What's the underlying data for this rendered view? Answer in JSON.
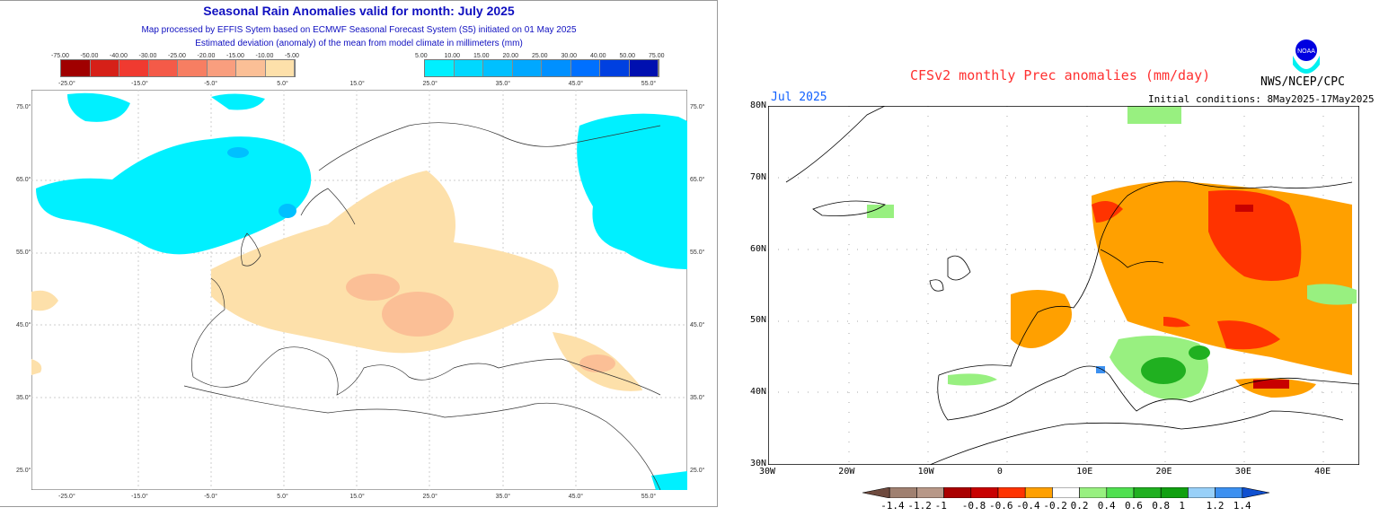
{
  "left": {
    "title": "Seasonal Rain Anomalies valid for month: July 2025",
    "subtitle1": "Map processed by EFFIS Sytem based on ECMWF Seasonal Forecast System (S5) initiated on 01 May 2025",
    "subtitle2": "Estimated deviation (anomaly) of the mean from model climate in millimeters (mm)",
    "legend_dry": {
      "labels": [
        "-75.00",
        "-50.00",
        "-40.00",
        "-30.00",
        "-25.00",
        "-20.00",
        "-15.00",
        "-10.00",
        "-5.00"
      ],
      "colors": [
        "#a00000",
        "#d62018",
        "#f03a30",
        "#f45a48",
        "#f77e62",
        "#f99e7e",
        "#fbbf96",
        "#fde0aa"
      ]
    },
    "legend_wet": {
      "labels": [
        "5.00",
        "10.00",
        "15.00",
        "20.00",
        "25.00",
        "30.00",
        "40.00",
        "50.00",
        "75.00"
      ],
      "colors": [
        "#00f0ff",
        "#00d8ff",
        "#00c0ff",
        "#00a8ff",
        "#0090ff",
        "#0070ff",
        "#0040e0",
        "#0010b0"
      ]
    },
    "lon_labels": [
      "-25.0°",
      "-15.0°",
      "-5.0°",
      "5.0°",
      "15.0°",
      "25.0°",
      "35.0°",
      "45.0°",
      "55.0°"
    ],
    "lat_labels": [
      "75.0°",
      "65.0°",
      "55.0°",
      "45.0°",
      "35.0°",
      "25.0°"
    ]
  },
  "right": {
    "title": "CFSv2 monthly Prec anomalies (mm/day)",
    "agency": "NWS/NCEP/CPC",
    "logo_text": "NOAA",
    "month": "Jul 2025",
    "initial_conditions": "Initial conditions: 8May2025-17May2025",
    "lat_labels": [
      "80N",
      "70N",
      "60N",
      "50N",
      "40N",
      "30N"
    ],
    "lon_labels": [
      "30W",
      "20W",
      "10W",
      "0",
      "10E",
      "20E",
      "30E",
      "40E"
    ],
    "legend": {
      "labels": [
        "-1.4",
        "-1.2",
        "-1",
        "-0.8",
        "-0.6",
        "-0.4",
        "-0.2",
        "0.2",
        "0.4",
        "0.6",
        "0.8",
        "1",
        "1.2",
        "1.4"
      ],
      "colors": [
        "#6e4a3e",
        "#a08070",
        "#b89888",
        "#aa0000",
        "#c80000",
        "#ff3300",
        "#ffa000",
        "#ffffff",
        "#98f080",
        "#50e050",
        "#20b020",
        "#10a010",
        "#98d0f8",
        "#3c90f0",
        "#1050d0"
      ]
    }
  }
}
